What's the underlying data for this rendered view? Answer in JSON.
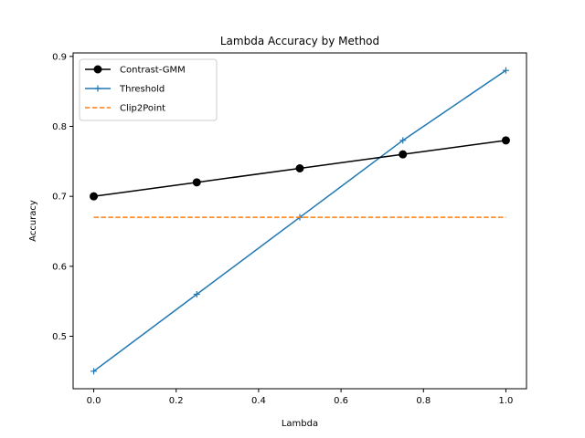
{
  "chart_data": {
    "type": "line",
    "title": "Lambda Accuracy by Method",
    "xlabel": "Lambda",
    "ylabel": "Accuracy",
    "xlim": [
      -0.05,
      1.05
    ],
    "ylim": [
      0.425,
      0.905
    ],
    "x_ticks": [
      0.0,
      0.2,
      0.4,
      0.6,
      0.8,
      1.0
    ],
    "x_tick_labels": [
      "0.0",
      "0.2",
      "0.4",
      "0.6",
      "0.8",
      "1.0"
    ],
    "y_ticks": [
      0.5,
      0.6,
      0.7,
      0.8,
      0.9
    ],
    "y_tick_labels": [
      "0.5",
      "0.6",
      "0.7",
      "0.8",
      "0.9"
    ],
    "grid": false,
    "legend_position": "top-left",
    "series": [
      {
        "name": "Contrast-GMM",
        "x": [
          0.0,
          0.25,
          0.5,
          0.75,
          1.0
        ],
        "y": [
          0.7,
          0.72,
          0.74,
          0.76,
          0.78
        ],
        "color": "#000000",
        "line_style": "solid",
        "marker": "circle"
      },
      {
        "name": "Threshold",
        "x": [
          0.0,
          0.25,
          0.5,
          0.75,
          1.0
        ],
        "y": [
          0.45,
          0.56,
          0.67,
          0.78,
          0.88
        ],
        "color": "#1f77b4",
        "line_style": "solid",
        "marker": "plus"
      },
      {
        "name": "Clip2Point",
        "x": [
          0.0,
          1.0
        ],
        "y": [
          0.67,
          0.67
        ],
        "color": "#ff7f0e",
        "line_style": "dashed",
        "marker": "none"
      }
    ]
  }
}
